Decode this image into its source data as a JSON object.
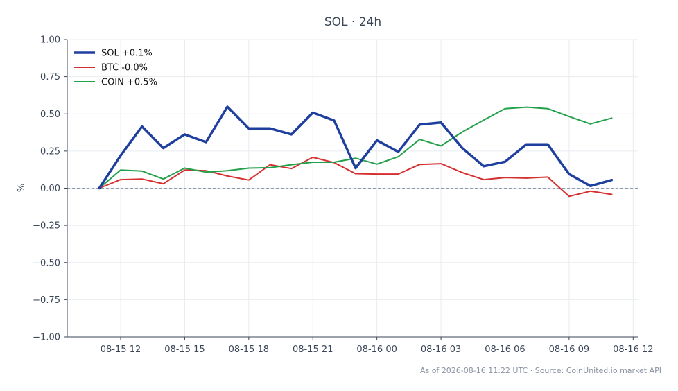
{
  "chart_data": {
    "type": "line",
    "title": "SOL · 24h",
    "xlabel": "",
    "ylabel": "%",
    "ylim": [
      -1.0,
      1.0
    ],
    "yticks": [
      1.0,
      0.75,
      0.5,
      0.25,
      0.0,
      -0.25,
      -0.5,
      -0.75,
      -1.0
    ],
    "ytick_labels": [
      "1.00",
      "0.75",
      "0.50",
      "0.25",
      "0.00",
      "−0.25",
      "−0.50",
      "−0.75",
      "−1.00"
    ],
    "xlim": [
      "2026-08-15 09:30",
      "2026-08-16 12:15"
    ],
    "xtick_labels": [
      "08-15 12",
      "08-15 15",
      "08-15 18",
      "08-15 21",
      "08-16 00",
      "08-16 03",
      "08-16 06",
      "08-16 09",
      "08-16 12"
    ],
    "xticks": [
      "2026-08-15 12:00",
      "2026-08-15 15:00",
      "2026-08-15 18:00",
      "2026-08-15 21:00",
      "2026-08-16 00:00",
      "2026-08-16 03:00",
      "2026-08-16 06:00",
      "2026-08-16 09:00",
      "2026-08-16 12:00"
    ],
    "x": [
      "2026-08-15 11:00",
      "2026-08-15 12:00",
      "2026-08-15 13:00",
      "2026-08-15 14:00",
      "2026-08-15 15:00",
      "2026-08-15 16:00",
      "2026-08-15 17:00",
      "2026-08-15 18:00",
      "2026-08-15 19:00",
      "2026-08-15 20:00",
      "2026-08-15 21:00",
      "2026-08-15 22:00",
      "2026-08-15 23:00",
      "2026-08-16 00:00",
      "2026-08-16 01:00",
      "2026-08-16 02:00",
      "2026-08-16 03:00",
      "2026-08-16 04:00",
      "2026-08-16 05:00",
      "2026-08-16 06:00",
      "2026-08-16 07:00",
      "2026-08-16 08:00",
      "2026-08-16 09:00",
      "2026-08-16 10:00",
      "2026-08-16 11:00"
    ],
    "grid": true,
    "legend_position": "top-left",
    "zero_line": true,
    "series": [
      {
        "name": "SOL +0.1%",
        "color": "#1f3f9f",
        "width": "thick",
        "values": [
          0.0,
          0.22,
          0.415,
          0.27,
          0.362,
          0.31,
          0.548,
          0.402,
          0.402,
          0.362,
          0.508,
          0.455,
          0.135,
          0.322,
          0.245,
          0.428,
          0.442,
          0.27,
          0.148,
          0.178,
          0.295,
          0.295,
          0.095,
          0.015,
          0.055
        ]
      },
      {
        "name": "BTC -0.0%",
        "color": "#d62f2f",
        "width": "thin",
        "values": [
          0.0,
          0.058,
          0.062,
          0.03,
          0.122,
          0.118,
          0.082,
          0.055,
          0.158,
          0.132,
          0.208,
          0.172,
          0.098,
          0.095,
          0.095,
          0.16,
          0.165,
          0.105,
          0.058,
          0.072,
          0.068,
          0.075,
          -0.055,
          -0.02,
          -0.042
        ]
      },
      {
        "name": "COIN +0.5%",
        "color": "#22a04a",
        "width": "thin",
        "values": [
          0.0,
          0.122,
          0.115,
          0.062,
          0.135,
          0.108,
          0.118,
          0.135,
          0.138,
          0.158,
          0.175,
          0.175,
          0.202,
          0.162,
          0.212,
          0.328,
          0.285,
          0.378,
          0.458,
          0.535,
          0.545,
          0.535,
          0.482,
          0.432,
          0.472
        ]
      }
    ],
    "footer": "As of 2026-08-16 11:22 UTC · Source: CoinUnited.io market API"
  }
}
